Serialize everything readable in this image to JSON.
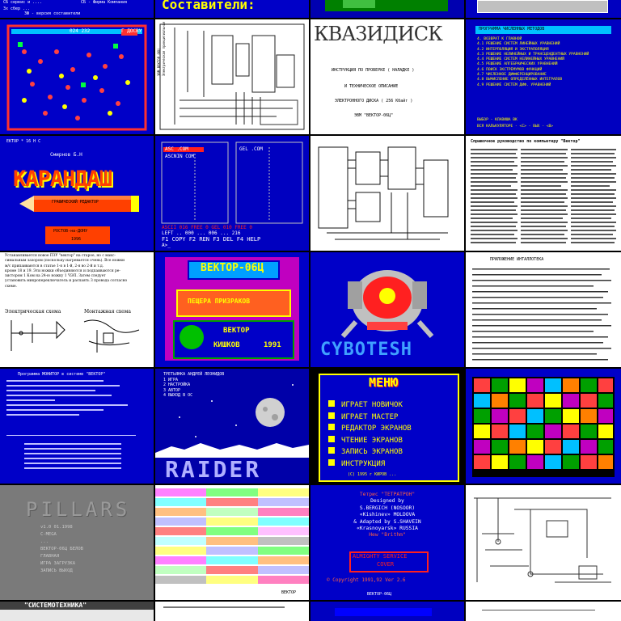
{
  "grid": {
    "columns": 4,
    "rows": 6
  },
  "tiles": {
    "t01": {
      "lines": [
        "СБ сервис и ....",
        "СБ - Фирма Компания",
        "Зх сбер ...",
        "ЗФ - версия составители"
      ]
    },
    "t02": {
      "title": "Составители:"
    },
    "t03": {},
    "t04": {},
    "t05": {
      "score": "024 232",
      "menu": "Г ДОСВУ"
    },
    "t06": {
      "lines": [
        "ЭВМ ВЕКТОР 06Ц",
        "Электрическая принципиальная",
        "схема"
      ]
    },
    "t07": {
      "title": "КВАЗИДИСК",
      "lines": [
        "ИНСТРУКЦИЯ ПО ПРОВЕРКЕ ( НАЛАДКЕ )",
        "И ТЕХНИЧЕСКОЕ ОПИСАНИЕ",
        "ЭЛЕКТРОННОГО ДИСКА ( 256 Кбайт )",
        "ЭВМ \"ВЕКТОР-06Ц\""
      ]
    },
    "t08": {
      "header": "ПРОГРАММА ЧИСЛЕННЫХ МЕТОДОВ",
      "menu": [
        "4. ВОЗВРАТ К ГЛАВНОЙ",
        "4.1 РЕШЕНИЕ СИСТЕМ ЛИНЕЙНЫХ УРАВНЕНИЙ",
        "4.2 ИНТЕРПОЛЯЦИЯ И ЭКСТРАПОЛЯЦИЯ",
        "4.3 РЕШЕНИЕ НЕЛИНЕЙНЫХ И ТРАНСЦЕНДЕНТНЫХ УРАВНЕНИЙ",
        "4.4 РЕШЕНИЕ СИСТЕМ НЕЛИНЕЙНЫХ УРАВНЕНИЙ",
        "4.5 РЕШЕНИЕ АЛГЕБРАИЧЕСКИХ УРАВНЕНИЙ",
        "4.6 ПОИСК ЭКСТРЕМУМОВ ФУНКЦИЙ",
        "4.7 ЧИСЛЕННОЕ ДИФФЕРЕНЦИРОВАНИЕ",
        "4.8 ВЫЧИСЛЕНИЕ ОПРЕДЕЛЁННЫХ ИНТЕГРАЛОВ",
        "4.9 РЕШЕНИЕ СИСТЕМ ДИФ. УРАВНЕНИЙ"
      ],
      "footer": [
        "ВЫБОР - КЛАВИША ВК",
        "ВСЯ КАЛЬКУЛЯТОРЕ - <С> - ВЫХ - <В>"
      ]
    },
    "t09": {
      "top": "ЕКТОР * 16 Н С",
      "author": "Смирнов Б.Н",
      "title": "КАРАНДАШ",
      "subtitle": "ГРАФИЧЕСКИЙ РЕДАКТОР",
      "footer": [
        "РОСТОВ-на-ДОНУ",
        "1996"
      ]
    },
    "t10": {
      "left_header": "ASC        .COM",
      "right_header": "GEL         .COM",
      "left_files": [
        "ASC       .COM",
        "ASCNIN     COM"
      ],
      "status": [
        "ASCII  016 FREE 0  GEL 010  FREE 0",
        "LEFT ..  000 ... 006 ...  216"
      ],
      "keys": [
        "F1 COPY F2 REN F3 DEL F4 HELP"
      ],
      "prompt": "A>_"
    },
    "t11": {},
    "t12": {
      "title": "Справочное руководство по компьютеру \"Вектор\""
    },
    "t13": {
      "text": [
        "Устанавливается новое ПЗУ \"вектор\" на старое, но с макс-",
        "симальным зазором (поскольку нагревается очень). Все ножки",
        "м/с припаиваются в статье 1-я в 1-й, 2-я во 2-й и т.д.",
        "кроме 18 и 19. Эти ножки объединяются и подпаиваются ре-",
        "зистором 1 Ком на 24-ю ножку 1 ЧЭП. Затем следует",
        "установить микропереключатель и распаять 3 провода согласно",
        "схеме."
      ],
      "left_caption": "Электрическая схема",
      "right_caption": "Монтажная схема"
    },
    "t14": {
      "header": "ВЕКТОР-06Ц",
      "title": "ПЕЩЕРА ПРИЗРАКОВ",
      "brand": "ВЕКТОР",
      "author": "КИШКОВ",
      "year": "1991"
    },
    "t15": {
      "title": "CYBOTESH"
    },
    "t16": {
      "header": "ПРИЛОЖЕНИЕ ИНТАЛЛОТЕКА"
    },
    "t17": {
      "header": "Программа МОНИТОР в системе \"ВЕКТОР\""
    },
    "t18": {
      "menu": [
        "ТРЕТЬЯНКА  АНДРЕЙ  ЛЕОНИДОВ",
        "1 ИГРА",
        "2 НАСТРОЙКА",
        "3 АВТОР",
        "4 ВЫХОД В ОС"
      ],
      "title": "RAIDER"
    },
    "t19": {
      "header": "МЕНЮ",
      "items": [
        "ИГРАЕТ НОВИЧОК",
        "ИГРАЕТ МАСТЕР",
        "РЕДАКТОР ЭКРАНОВ",
        "ЧТЕНИЕ ЭКРАНОВ",
        "ЗАПИСЬ ЭКРАНОВ",
        "ИНСТРУКЦИЯ"
      ],
      "footer": "(С) 1995 г  КИРОВ ..."
    },
    "t20": {},
    "t21": {
      "title": "PILLARS",
      "lines": [
        "v1.0  01.1998",
        "C-MEGA",
        "...",
        "ВЕКТОР-06Ц  БЕЛОВ",
        "ГЛАВНАЯ",
        "ИГРА ЗАГРУЗКА",
        "ЗАПИСЬ ВЫХОД"
      ]
    },
    "t22": {
      "footer": "ВЕКТОР"
    },
    "t23": {
      "lines": [
        "Тетрис \"ТЕТРАТРОН\"",
        "Designed by",
        "S.BERGICH (NOSOOR)",
        "«Kishinev» MOLDOVA",
        "& Adapted by S.SHAVEIN",
        "«Krasnoyarsk» RUSSIA",
        "Hew \"Brithm\""
      ],
      "box": [
        "ALMIGHTY SERVICE",
        "COVER"
      ],
      "copyright": "© Copyright 1991,92 Ver 2.6",
      "footer": "ВЕКТОР-06Ц"
    },
    "t24": {},
    "t25": {
      "title": "\"СИСТЕМОТЕХНИКА\""
    },
    "t26": {},
    "t27": {},
    "t28": {}
  },
  "colors": {
    "vector_blue": "#0000c8",
    "yellow": "#ffff00",
    "cyan": "#00ffff",
    "red": "#ff2020",
    "magenta": "#c000c0",
    "green": "#00a000",
    "paper": "#ffffff",
    "grey": "#808080"
  }
}
